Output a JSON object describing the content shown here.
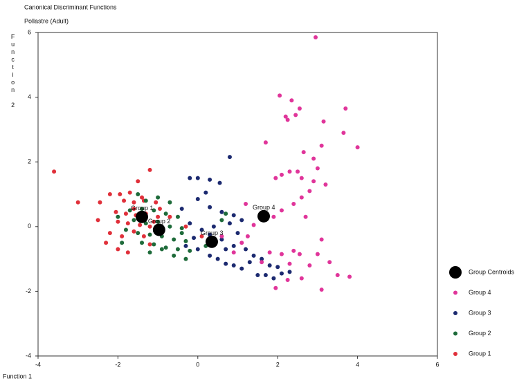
{
  "chart_data": {
    "type": "scatter",
    "title": "Canonical Discriminant Functions",
    "subtitle": "Pollastre (Adult)",
    "x_label": "Function 1",
    "y_label": "Function 2",
    "xlim": [
      -4,
      6
    ],
    "xticks": [
      -4,
      -2,
      0,
      2,
      4,
      6
    ],
    "ylim": [
      -4,
      6
    ],
    "yticks": [
      -4,
      -2,
      0,
      2,
      4,
      6
    ],
    "grid": false,
    "legend": "right",
    "series": [
      {
        "name": "Group Centroids",
        "color": "#000000",
        "marker_size": 9,
        "point_labels": [
          "Group 1",
          "Group 2",
          "Group 3",
          "Group 4"
        ],
        "x": [
          -1.4,
          -0.97,
          0.35,
          1.65
        ],
        "values": [
          0.3,
          -0.1,
          -0.47,
          0.32
        ]
      },
      {
        "name": "Group 4",
        "color": "#e0359a",
        "marker_size": 3,
        "x": [
          2.95,
          2.05,
          2.35,
          2.55,
          2.2,
          2.25,
          2.45,
          3.15,
          3.7,
          3.65,
          4.0,
          1.7,
          3.1,
          2.65,
          2.9,
          2.5,
          3.0,
          2.3,
          2.6,
          2.1,
          1.95,
          2.9,
          3.2,
          2.8,
          2.6,
          2.4,
          2.1,
          2.7,
          1.9,
          1.2,
          1.4,
          1.1,
          1.25,
          3.1,
          2.4,
          2.1,
          1.8,
          2.55,
          3.0,
          2.3,
          2.8,
          3.3,
          3.5,
          3.8,
          2.6,
          2.25,
          1.95,
          3.1,
          0.6,
          0.9,
          1.6
        ],
        "values": [
          5.85,
          4.05,
          3.9,
          3.65,
          3.4,
          3.3,
          3.45,
          3.25,
          3.65,
          2.9,
          2.45,
          2.6,
          2.5,
          2.3,
          2.1,
          1.7,
          1.8,
          1.7,
          1.5,
          1.6,
          1.5,
          1.4,
          1.3,
          1.1,
          0.9,
          0.7,
          0.5,
          0.3,
          0.3,
          0.7,
          0.05,
          -0.5,
          -0.3,
          -0.4,
          -0.75,
          -0.85,
          -0.8,
          -0.85,
          -0.85,
          -1.15,
          -1.2,
          -1.1,
          -1.5,
          -1.55,
          -1.6,
          -1.65,
          -1.9,
          -1.95,
          -0.3,
          -0.8,
          -1.1
        ]
      },
      {
        "name": "Group 3",
        "color": "#1c2a70",
        "marker_size": 3,
        "x": [
          0.0,
          0.3,
          -0.2,
          0.8,
          0.55,
          0.2,
          0.0,
          -0.4,
          0.3,
          0.6,
          0.9,
          1.1,
          0.8,
          0.4,
          0.1,
          -0.1,
          0.3,
          0.6,
          0.9,
          1.2,
          1.4,
          1.6,
          1.8,
          2.0,
          2.3,
          1.5,
          1.9,
          0.5,
          0.7,
          0.9,
          1.1,
          0.3,
          0.0,
          -0.3,
          1.3,
          1.7,
          2.1,
          1.0,
          0.7,
          -0.2
        ],
        "values": [
          1.5,
          1.45,
          1.5,
          2.15,
          1.35,
          1.05,
          0.85,
          0.55,
          0.6,
          0.45,
          0.35,
          0.2,
          0.1,
          0.0,
          -0.1,
          -0.35,
          -0.25,
          -0.4,
          -0.6,
          -0.7,
          -0.9,
          -1.0,
          -1.2,
          -1.25,
          -1.4,
          -1.5,
          -1.6,
          -1.0,
          -1.15,
          -1.2,
          -1.3,
          -0.9,
          -0.7,
          -0.6,
          -1.1,
          -1.5,
          -1.45,
          -0.2,
          -0.7,
          0.1
        ]
      },
      {
        "name": "Group 2",
        "color": "#1e6b3a",
        "marker_size": 3,
        "x": [
          -1.5,
          -1.3,
          -1.0,
          -0.7,
          -1.7,
          -1.4,
          -1.1,
          -0.8,
          -0.5,
          -1.6,
          -1.3,
          -1.0,
          -0.7,
          -0.4,
          -1.8,
          -1.5,
          -1.2,
          -0.9,
          -0.6,
          -0.3,
          -1.9,
          -1.4,
          -1.1,
          -0.8,
          -0.5,
          -0.2,
          -0.6,
          -0.3,
          0.2,
          0.7,
          0.6,
          -2.0,
          -1.2,
          -0.9,
          -0.4
        ],
        "values": [
          1.0,
          0.8,
          0.9,
          0.75,
          0.5,
          0.55,
          0.5,
          0.4,
          0.3,
          0.2,
          0.1,
          0.15,
          0.0,
          -0.05,
          -0.1,
          -0.2,
          -0.25,
          -0.3,
          -0.4,
          -0.45,
          -0.5,
          -0.5,
          -0.55,
          -0.65,
          -0.7,
          -0.75,
          -0.9,
          -1.0,
          -0.6,
          0.4,
          0.2,
          0.3,
          -0.8,
          -0.7,
          -0.2
        ]
      },
      {
        "name": "Group 1",
        "color": "#e0303a",
        "marker_size": 3,
        "x": [
          -3.6,
          -3.0,
          -2.45,
          -2.2,
          -1.95,
          -1.7,
          -1.5,
          -1.2,
          -1.85,
          -1.6,
          -1.35,
          -1.05,
          -2.05,
          -1.8,
          -1.55,
          -1.3,
          -1.0,
          -2.0,
          -1.75,
          -1.45,
          -1.2,
          -2.2,
          -1.9,
          -1.6,
          -1.35,
          -2.3,
          -2.0,
          -1.75,
          -1.2,
          -0.95,
          -0.7,
          -0.3,
          0.1,
          -1.6,
          -1.1,
          -2.5,
          -1.4
        ],
        "values": [
          1.7,
          0.75,
          0.75,
          1.0,
          1.0,
          1.05,
          1.4,
          1.75,
          0.8,
          0.75,
          0.8,
          0.75,
          0.45,
          0.4,
          0.35,
          0.4,
          0.3,
          0.15,
          0.1,
          0.05,
          0.0,
          -0.2,
          -0.3,
          -0.15,
          -0.3,
          -0.5,
          -0.7,
          -0.8,
          -0.55,
          0.55,
          0.3,
          0.0,
          -0.3,
          0.55,
          0.15,
          0.2,
          0.9
        ]
      }
    ]
  }
}
